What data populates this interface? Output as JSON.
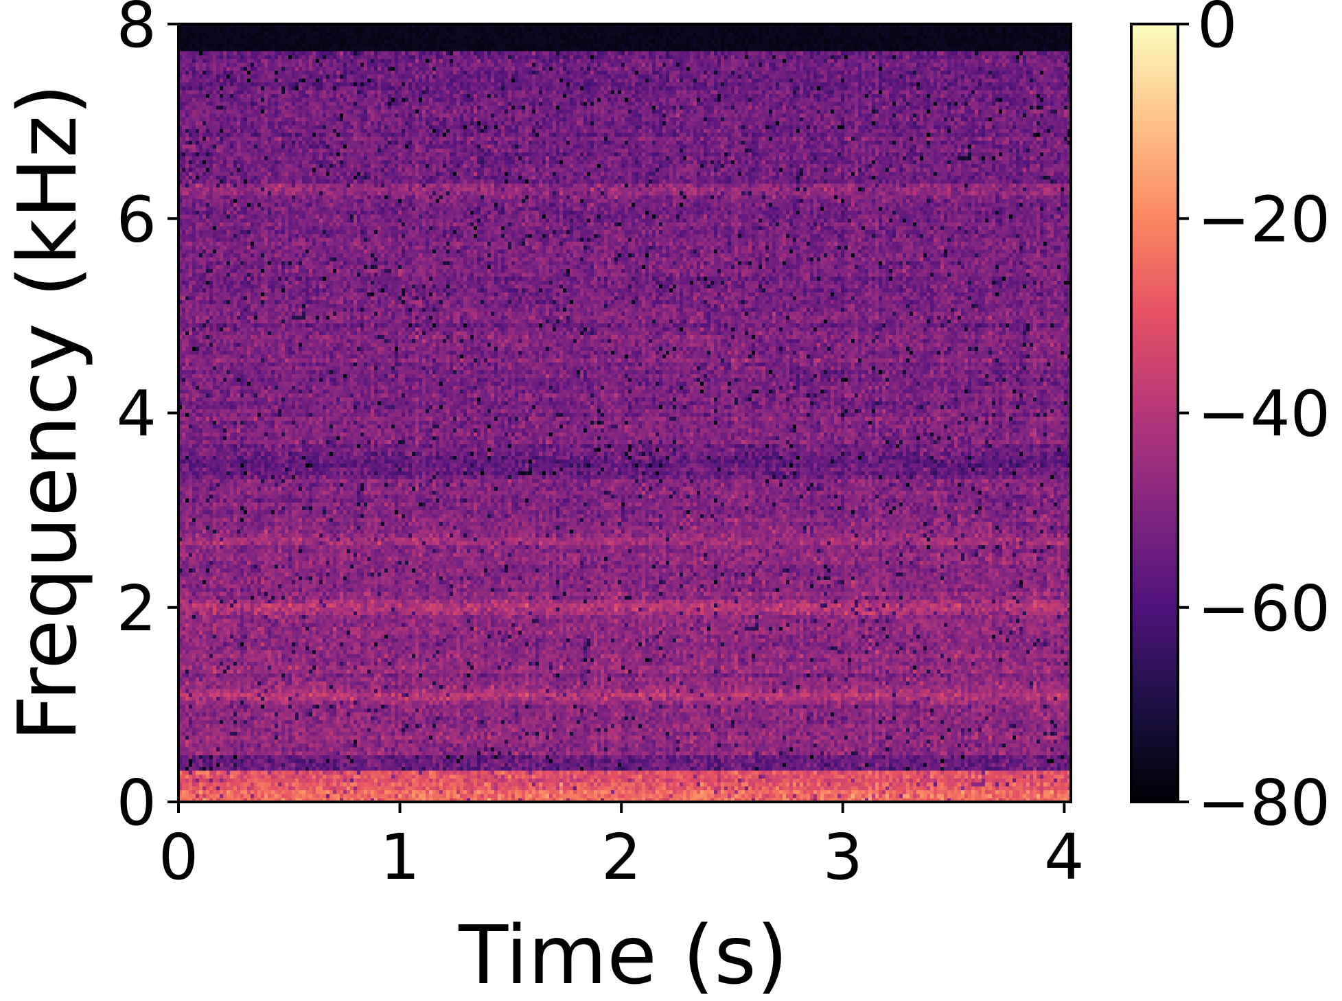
{
  "chart_data": {
    "type": "heatmap",
    "title": "",
    "xlabel": "Time (s)",
    "ylabel": "Frequency (kHz)",
    "xlim": [
      0,
      4.03
    ],
    "ylim": [
      0,
      8
    ],
    "x_ticks": [
      0,
      1,
      2,
      3,
      4
    ],
    "y_ticks": [
      0,
      2,
      4,
      6,
      8
    ],
    "x_tick_labels": [
      "0",
      "1",
      "2",
      "3",
      "4"
    ],
    "y_tick_labels": [
      "0",
      "2",
      "4",
      "6",
      "8"
    ],
    "colormap": "magma",
    "colorbar": {
      "range": [
        -80,
        0
      ],
      "ticks": [
        0,
        -20,
        -40,
        -60,
        -80
      ],
      "tick_labels": [
        "0",
        "−20",
        "−40",
        "−60",
        "−80"
      ],
      "placement": "right"
    },
    "colors": {
      "magma_stops": [
        "#000004",
        "#1c1044",
        "#4f127b",
        "#812581",
        "#b5367a",
        "#e55064",
        "#fb8761",
        "#fec287",
        "#fcfdbf"
      ]
    },
    "grid": false,
    "description_values": {
      "time_bins": 260,
      "freq_bins": 200,
      "cutoff_khz": 7.7,
      "low_band_khz": [
        0.0,
        0.3
      ],
      "bright_bands_khz": [
        2.0,
        1.1,
        2.7,
        6.3
      ],
      "dark_band_khz": [
        3.3,
        3.7
      ]
    }
  }
}
